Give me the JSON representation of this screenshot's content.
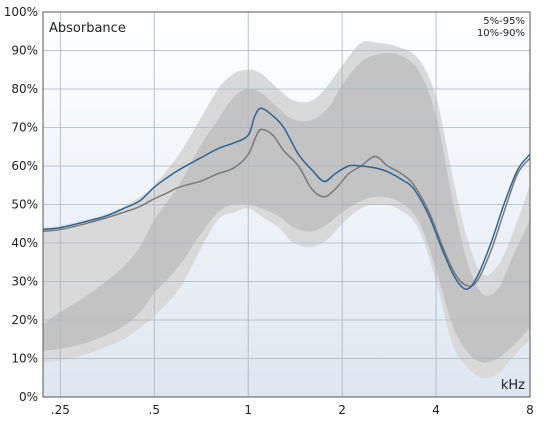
{
  "chart_data": {
    "type": "line",
    "ylabel": "Absorbance",
    "xlabel": "kHz",
    "x_scale": "log",
    "xlim": [
      0.22,
      8
    ],
    "ylim": [
      0,
      100
    ],
    "x_ticks": [
      {
        "value": 0.25,
        "label": ".25"
      },
      {
        "value": 0.5,
        "label": ".5"
      },
      {
        "value": 1,
        "label": "1"
      },
      {
        "value": 2,
        "label": "2"
      },
      {
        "value": 4,
        "label": "4"
      },
      {
        "value": 8,
        "label": "8"
      }
    ],
    "y_ticks": [
      {
        "value": 0,
        "label": "0%"
      },
      {
        "value": 10,
        "label": "10%"
      },
      {
        "value": 20,
        "label": "20%"
      },
      {
        "value": 30,
        "label": "30%"
      },
      {
        "value": 40,
        "label": "40%"
      },
      {
        "value": 50,
        "label": "50%"
      },
      {
        "value": 60,
        "label": "60%"
      },
      {
        "value": 70,
        "label": "70%"
      },
      {
        "value": 80,
        "label": "80%"
      },
      {
        "value": 90,
        "label": "90%"
      },
      {
        "value": 100,
        "label": "100%"
      }
    ],
    "grid": true,
    "legend": {
      "position": "top-right",
      "entries": [
        "5%-95%",
        "10%-90%"
      ]
    },
    "bands": [
      {
        "name": "5%-95%",
        "color": "#d9d9d9",
        "x": [
          0.22,
          0.25,
          0.3,
          0.35,
          0.4,
          0.45,
          0.5,
          0.6,
          0.7,
          0.8,
          0.9,
          1.0,
          1.1,
          1.25,
          1.4,
          1.6,
          1.8,
          2.0,
          2.3,
          2.6,
          3.0,
          3.5,
          4.0,
          4.5,
          5.0,
          5.6,
          6.3,
          7.0,
          8.0
        ],
        "upper": [
          44,
          44.5,
          46,
          47.5,
          49.5,
          52,
          55,
          63,
          72,
          80,
          84,
          85,
          84,
          80,
          77,
          77,
          81,
          86,
          92,
          92,
          91,
          88,
          78,
          58,
          42,
          32,
          34,
          42,
          55
        ],
        "lower": [
          9,
          9.5,
          11,
          13,
          15,
          18,
          21,
          28,
          38,
          46,
          48,
          49,
          47,
          44,
          40,
          39,
          41,
          45,
          49,
          50,
          49,
          44,
          30,
          14,
          8,
          5,
          6,
          10,
          15
        ]
      },
      {
        "name": "10%-90%",
        "color": "#c3c3c3",
        "x": [
          0.22,
          0.25,
          0.3,
          0.35,
          0.4,
          0.45,
          0.5,
          0.6,
          0.7,
          0.8,
          0.9,
          1.0,
          1.1,
          1.25,
          1.4,
          1.6,
          1.8,
          2.0,
          2.3,
          2.6,
          3.0,
          3.5,
          4.0,
          4.5,
          5.0,
          5.6,
          6.3,
          7.0,
          8.0
        ],
        "upper": [
          19,
          22,
          26,
          30,
          34,
          39,
          46,
          55,
          65,
          72,
          78,
          80,
          79,
          75,
          72,
          72,
          75,
          81,
          87,
          89,
          89,
          85,
          73,
          52,
          36,
          27,
          28,
          36,
          46
        ],
        "lower": [
          12,
          12.5,
          14,
          16,
          18.5,
          22,
          27,
          34,
          42,
          48,
          50,
          50,
          49,
          47,
          44,
          43,
          45,
          48,
          51,
          52,
          51,
          46,
          33,
          19,
          12,
          9,
          10,
          13,
          18
        ]
      }
    ],
    "series": [
      {
        "color": "#7a7a7a",
        "x": [
          0.22,
          0.25,
          0.3,
          0.35,
          0.4,
          0.45,
          0.5,
          0.55,
          0.6,
          0.7,
          0.8,
          0.9,
          1.0,
          1.05,
          1.1,
          1.2,
          1.3,
          1.45,
          1.6,
          1.75,
          1.9,
          2.1,
          2.3,
          2.55,
          2.8,
          3.1,
          3.4,
          3.8,
          4.2,
          4.6,
          5.0,
          5.4,
          6.0,
          6.6,
          7.3,
          8.0
        ],
        "values": [
          43,
          43.5,
          45,
          46.5,
          48,
          49.5,
          51.5,
          53,
          54.5,
          56,
          58,
          59.5,
          63,
          67,
          69.5,
          68,
          64,
          60,
          54,
          52,
          54,
          58,
          60,
          62.5,
          60,
          58,
          55,
          48,
          39,
          32,
          29,
          30,
          38,
          48,
          58,
          62
        ]
      },
      {
        "color": "#2a6496",
        "x": [
          0.22,
          0.25,
          0.3,
          0.35,
          0.4,
          0.45,
          0.5,
          0.55,
          0.6,
          0.7,
          0.8,
          0.9,
          1.0,
          1.05,
          1.1,
          1.2,
          1.3,
          1.45,
          1.6,
          1.75,
          1.9,
          2.1,
          2.3,
          2.55,
          2.8,
          3.1,
          3.4,
          3.8,
          4.2,
          4.6,
          5.0,
          5.4,
          6.0,
          6.6,
          7.3,
          8.0
        ],
        "values": [
          43.5,
          44,
          45.5,
          47,
          49,
          51,
          54.5,
          57,
          59,
          62,
          64.5,
          66,
          68,
          73,
          75,
          73,
          70,
          63,
          59,
          56,
          58,
          60,
          60,
          59.5,
          58.5,
          56.5,
          54,
          47,
          38,
          31,
          28,
          31,
          40,
          50,
          59,
          63
        ]
      }
    ]
  }
}
